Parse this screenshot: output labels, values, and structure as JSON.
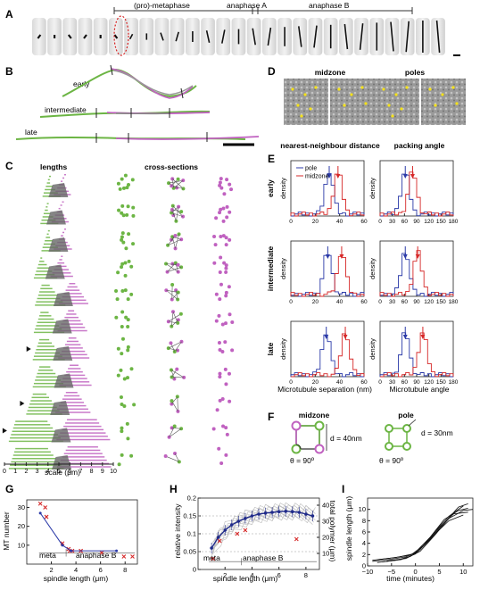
{
  "panels": {
    "A": {
      "letter": "A",
      "phases": [
        "(pro)-metaphase",
        "anaphase A",
        "anaphase B"
      ]
    },
    "B": {
      "letter": "B",
      "rows": [
        "early",
        "intermediate",
        "late"
      ]
    },
    "C": {
      "letter": "C",
      "title_left": "lengths",
      "title_right": "cross-sections",
      "scale_label": "scale (μm)",
      "scale_ticks": [
        "0",
        "1",
        "2",
        "3",
        "4",
        "5",
        "6",
        "7",
        "8",
        "9",
        "10"
      ]
    },
    "D": {
      "letter": "D",
      "titles": [
        "midzone",
        "poles"
      ]
    },
    "E": {
      "letter": "E",
      "col_titles": [
        "nearest-neighbour distance",
        "packing angle"
      ],
      "row_labels": [
        "early",
        "intermediate",
        "late"
      ],
      "ylabel": "density",
      "legend": [
        "pole",
        "midzone"
      ],
      "xlabel_left": "Microtubule separation (nm)",
      "xlabel_right": "Microtubule angle",
      "left_ticks": [
        "0",
        "20",
        "40",
        "60"
      ],
      "right_ticks": [
        "0",
        "30",
        "60",
        "90",
        "120",
        "150",
        "180"
      ]
    },
    "F": {
      "letter": "F",
      "midzone_title": "midzone",
      "pole_title": "pole",
      "midzone_d": "d = 40nm",
      "midzone_theta": "θ = 90º",
      "pole_d": "d = 30nm",
      "pole_theta": "θ = 90º"
    },
    "G": {
      "letter": "G",
      "ylabel": "MT number",
      "xlabel": "spindle length (μm)",
      "phase_meta": "meta",
      "phase_anaB": "anaphase B",
      "xticks": [
        "2",
        "4",
        "6",
        "8"
      ],
      "yticks": [
        "10",
        "20",
        "30"
      ]
    },
    "H": {
      "letter": "H",
      "ylabel_left": "relative intensity",
      "ylabel_right": "total polymer (μm)",
      "xlabel": "spindle length (μm)",
      "phase_meta": "meta",
      "phase_anaB": "anaphase B",
      "xticks": [
        "2",
        "4",
        "6",
        "8"
      ],
      "yticks_left": [
        "0",
        "0.05",
        "0.1",
        "0.15",
        "0.2"
      ],
      "yticks_right": [
        "10",
        "20",
        "30",
        "40"
      ]
    },
    "I": {
      "letter": "I",
      "ylabel": "spindle length (μm)",
      "xlabel": "time (minutes)",
      "xticks": [
        "−10",
        "−5",
        "0",
        "5",
        "10"
      ],
      "yticks": [
        "0",
        "2",
        "4",
        "6",
        "8",
        "10"
      ]
    }
  },
  "chart_data": [
    {
      "panel": "G",
      "type": "scatter",
      "xlabel": "spindle length (μm)",
      "ylabel": "MT number",
      "xlim": [
        0,
        9
      ],
      "ylim": [
        0,
        34
      ],
      "series": [
        {
          "values": [
            {
              "x": 1.1,
              "y": 32
            },
            {
              "x": 1.5,
              "y": 30
            },
            {
              "x": 1.6,
              "y": 25
            },
            {
              "x": 2.9,
              "y": 11
            },
            {
              "x": 3.4,
              "y": 8
            },
            {
              "x": 3.5,
              "y": 7
            },
            {
              "x": 3.7,
              "y": 7
            },
            {
              "x": 4.4,
              "y": 7
            },
            {
              "x": 6.1,
              "y": 6
            },
            {
              "x": 7.9,
              "y": 4
            },
            {
              "x": 8.6,
              "y": 4
            }
          ]
        },
        {
          "values": [
            {
              "x": 1.1,
              "y": 27
            },
            {
              "x": 2.9,
              "y": 10
            },
            {
              "x": 3.6,
              "y": 7
            },
            {
              "x": 7.3,
              "y": 7
            }
          ]
        }
      ]
    },
    {
      "panel": "H",
      "type": "line",
      "xlabel": "spindle length (μm)",
      "ylabel": "relative intensity",
      "xlim": [
        0,
        9
      ],
      "ylim": [
        0,
        0.2
      ],
      "series": [
        {
          "values": [
            {
              "x": 1.0,
              "y": 0.06
            },
            {
              "x": 1.5,
              "y": 0.09
            },
            {
              "x": 2.0,
              "y": 0.11
            },
            {
              "x": 2.5,
              "y": 0.125
            },
            {
              "x": 3.0,
              "y": 0.135
            },
            {
              "x": 3.5,
              "y": 0.143
            },
            {
              "x": 4.0,
              "y": 0.15
            },
            {
              "x": 4.5,
              "y": 0.155
            },
            {
              "x": 5.0,
              "y": 0.158
            },
            {
              "x": 5.5,
              "y": 0.16
            },
            {
              "x": 6.0,
              "y": 0.162
            },
            {
              "x": 6.5,
              "y": 0.163
            },
            {
              "x": 7.0,
              "y": 0.162
            },
            {
              "x": 7.5,
              "y": 0.16
            },
            {
              "x": 8.0,
              "y": 0.155
            },
            {
              "x": 8.5,
              "y": 0.15
            }
          ]
        }
      ]
    },
    {
      "panel": "I",
      "type": "line",
      "xlabel": "time (minutes)",
      "ylabel": "spindle length (μm)",
      "xlim": [
        -10,
        12
      ],
      "ylim": [
        0,
        12
      ],
      "series": [
        {
          "values": [
            {
              "x": -9,
              "y": 0.8
            },
            {
              "x": -5,
              "y": 1.2
            },
            {
              "x": -2,
              "y": 1.6
            },
            {
              "x": 0,
              "y": 2.4
            },
            {
              "x": 3,
              "y": 5.0
            },
            {
              "x": 6,
              "y": 8.2
            },
            {
              "x": 9,
              "y": 9.8
            },
            {
              "x": 11,
              "y": 10.2
            }
          ]
        },
        {
          "values": [
            {
              "x": -8,
              "y": 0.6
            },
            {
              "x": -4,
              "y": 1.0
            },
            {
              "x": -1,
              "y": 1.7
            },
            {
              "x": 1,
              "y": 2.9
            },
            {
              "x": 4,
              "y": 6.0
            },
            {
              "x": 7,
              "y": 8.8
            },
            {
              "x": 10,
              "y": 10.6
            }
          ]
        },
        {
          "values": [
            {
              "x": -9,
              "y": 1.0
            },
            {
              "x": -5,
              "y": 1.4
            },
            {
              "x": -1,
              "y": 1.9
            },
            {
              "x": 2,
              "y": 3.8
            },
            {
              "x": 5,
              "y": 6.8
            },
            {
              "x": 8,
              "y": 9.2
            },
            {
              "x": 11,
              "y": 9.5
            }
          ]
        },
        {
          "values": [
            {
              "x": -7,
              "y": 0.7
            },
            {
              "x": -3,
              "y": 1.1
            },
            {
              "x": 0,
              "y": 2.1
            },
            {
              "x": 3,
              "y": 4.6
            },
            {
              "x": 6,
              "y": 7.6
            },
            {
              "x": 9,
              "y": 10.4
            },
            {
              "x": 11,
              "y": 11.0
            }
          ]
        },
        {
          "values": [
            {
              "x": -8,
              "y": 1.1
            },
            {
              "x": -4,
              "y": 1.5
            },
            {
              "x": 0,
              "y": 2.2
            },
            {
              "x": 4,
              "y": 5.6
            },
            {
              "x": 7,
              "y": 8.0
            },
            {
              "x": 10,
              "y": 9.0
            }
          ]
        },
        {
          "values": [
            {
              "x": -6,
              "y": 0.9
            },
            {
              "x": -2,
              "y": 1.3
            },
            {
              "x": 1,
              "y": 2.6
            },
            {
              "x": 4,
              "y": 5.4
            },
            {
              "x": 7,
              "y": 8.4
            },
            {
              "x": 10,
              "y": 9.8
            },
            {
              "x": 12,
              "y": 10.0
            }
          ]
        }
      ]
    }
  ]
}
